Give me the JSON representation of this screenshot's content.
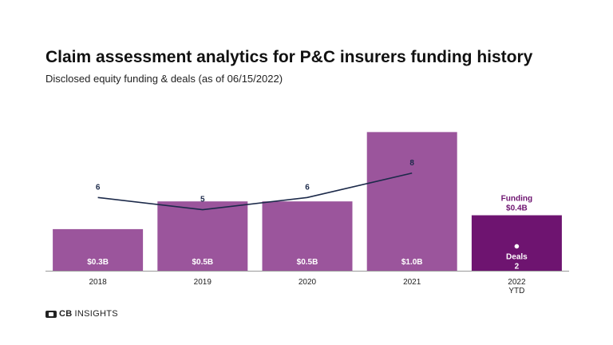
{
  "brand": {
    "bold": "CB",
    "rest": "INSIGHTS"
  },
  "colors": {
    "bar": "#9b559c",
    "bar_highlight": "#6e1470",
    "line": "#1c2a4a",
    "axis": "#999999",
    "label_dark": "#222222",
    "label_on_bar": "#ffffff"
  },
  "chart_data": {
    "type": "bar",
    "title": "Claim assessment analytics for P&C insurers funding history",
    "subtitle": "Disclosed equity funding & deals (as of 06/15/2022)",
    "categories": [
      "2018",
      "2019",
      "2020",
      "2021",
      "2022\nYTD"
    ],
    "series": [
      {
        "kind": "bar",
        "values": [
          0.3,
          0.5,
          0.5,
          1.0,
          0.4
        ],
        "labels": [
          "$0.3B",
          "$0.5B",
          "$0.5B",
          "$1.0B",
          "$0.4B"
        ]
      },
      {
        "kind": "line",
        "values": [
          6,
          5,
          6,
          8,
          2
        ]
      }
    ],
    "highlight": {
      "category_index": 4,
      "funding_label": "Funding",
      "funding_value": "$0.4B",
      "deals_label": "Deals",
      "deals_value": "2"
    },
    "bar_ylim": [
      0,
      1.1
    ],
    "line_ylim": [
      0,
      12.5
    ],
    "grid": false,
    "legend": "none"
  }
}
